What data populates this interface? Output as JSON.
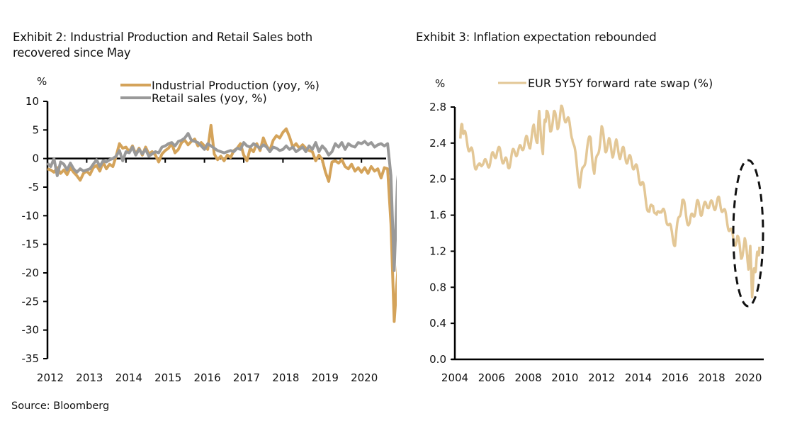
{
  "source": "Source: Bloomberg",
  "chart_data": [
    {
      "type": "line",
      "title": "Exhibit 2: Industrial Production and Retail Sales both recovered since May",
      "ylabel": "%",
      "xlabel": "",
      "ylim": [
        -35,
        10
      ],
      "yticks": [
        "10",
        "5",
        "0",
        "-5",
        "-10",
        "-15",
        "-20",
        "-25",
        "-30",
        "-35"
      ],
      "yticks_values": [
        10,
        5,
        0,
        -5,
        -10,
        -15,
        -20,
        -25,
        -30,
        -35
      ],
      "xticks": [
        "2012",
        "2013",
        "2014",
        "2015",
        "2016",
        "2017",
        "2018",
        "2019",
        "2020"
      ],
      "xlim": [
        2012.0,
        2020.55
      ],
      "legend_position": "top",
      "grid": false,
      "x_start": 2012.0,
      "x_step_months": 1,
      "series": [
        {
          "name": "Industrial Production (yoy, %)",
          "color": "#d4a35a",
          "values": [
            -1.8,
            -2.0,
            -2.4,
            -1.6,
            -2.6,
            -2.0,
            -2.8,
            -1.6,
            -2.4,
            -3.0,
            -3.8,
            -2.6,
            -2.2,
            -2.8,
            -1.6,
            -1.2,
            -2.2,
            -0.6,
            -1.8,
            -1.0,
            -1.4,
            0.4,
            2.6,
            1.8,
            2.0,
            1.2,
            2.2,
            0.8,
            1.8,
            0.6,
            2.0,
            0.8,
            1.2,
            0.6,
            -0.6,
            0.8,
            1.4,
            1.8,
            2.6,
            1.0,
            1.6,
            2.8,
            3.2,
            2.4,
            3.0,
            3.4,
            2.2,
            2.8,
            2.2,
            1.6,
            5.8,
            0.8,
            -0.2,
            0.4,
            -0.4,
            0.6,
            0.2,
            1.4,
            1.8,
            2.6,
            0.6,
            -0.4,
            1.8,
            1.2,
            2.6,
            1.4,
            3.6,
            2.2,
            1.4,
            3.2,
            4.0,
            3.6,
            4.6,
            5.2,
            3.8,
            2.0,
            2.6,
            1.8,
            2.4,
            1.8,
            1.4,
            1.2,
            -0.4,
            0.6,
            -0.2,
            -2.4,
            -4.0,
            -0.6,
            -0.4,
            -0.8,
            -0.2,
            -1.4,
            -1.8,
            -1.0,
            -2.2,
            -1.6,
            -2.4,
            -1.6,
            -2.6,
            -1.4,
            -2.2,
            -1.8,
            -3.4,
            -1.6,
            -1.8,
            -11.4,
            -28.5,
            -20.4,
            -12.2
          ]
        },
        {
          "name": "Retail sales (yoy, %)",
          "color": "#999999",
          "values": [
            -0.8,
            -1.4,
            0.0,
            -3.0,
            -0.6,
            -1.0,
            -2.0,
            -0.8,
            -1.8,
            -2.4,
            -1.8,
            -2.2,
            -2.0,
            -1.8,
            -1.0,
            -0.2,
            -1.4,
            -0.4,
            -0.6,
            -0.2,
            0.0,
            0.4,
            1.4,
            -0.4,
            1.2,
            1.0,
            2.0,
            0.6,
            1.6,
            0.8,
            1.6,
            0.4,
            0.8,
            1.2,
            1.0,
            2.0,
            2.2,
            2.6,
            2.8,
            2.2,
            3.0,
            3.2,
            3.6,
            4.4,
            3.2,
            3.0,
            2.8,
            2.2,
            1.6,
            2.6,
            2.2,
            1.8,
            1.4,
            1.2,
            1.0,
            1.2,
            1.4,
            1.2,
            1.8,
            1.6,
            2.8,
            2.2,
            2.0,
            2.6,
            2.2,
            1.8,
            2.4,
            2.0,
            1.2,
            2.0,
            1.8,
            1.4,
            1.6,
            2.2,
            1.6,
            2.0,
            1.2,
            1.6,
            2.0,
            1.2,
            2.2,
            1.6,
            2.8,
            1.2,
            2.2,
            1.6,
            0.6,
            1.2,
            2.6,
            2.0,
            2.8,
            1.6,
            2.6,
            2.2,
            2.0,
            2.8,
            2.6,
            3.0,
            2.4,
            2.8,
            2.0,
            2.4,
            2.6,
            2.2,
            2.6,
            -3.0,
            -19.6,
            -4.0,
            1.3
          ]
        }
      ]
    },
    {
      "type": "line",
      "title": "Exhibit 3: Inflation expectation rebounded",
      "ylabel": "%",
      "xlabel": "",
      "ylim": [
        0.0,
        2.8
      ],
      "yticks": [
        "2.8",
        "2.4",
        "2.0",
        "1.6",
        "1.2",
        "0.8",
        "0.4",
        "0.0"
      ],
      "yticks_values": [
        2.8,
        2.4,
        2.0,
        1.6,
        1.2,
        0.8,
        0.4,
        0.0
      ],
      "xticks": [
        "2004",
        "2006",
        "2008",
        "2010",
        "2012",
        "2014",
        "2016",
        "2018",
        "2020"
      ],
      "xlim": [
        2003.9,
        2020.9
      ],
      "legend_position": "top",
      "grid": false,
      "annotation": "dashed ellipse highlighting 2020 drop and rebound",
      "series": [
        {
          "name": "EUR 5Y5Y forward rate swap (%)",
          "color": "#e3c796",
          "x": [
            2004.3,
            2004.4,
            2004.5,
            2004.7,
            2004.9,
            2005.1,
            2005.3,
            2005.5,
            2005.7,
            2005.9,
            2006.1,
            2006.3,
            2006.5,
            2006.7,
            2006.9,
            2007.1,
            2007.3,
            2007.5,
            2007.7,
            2007.9,
            2008.1,
            2008.3,
            2008.5,
            2008.6,
            2008.8,
            2008.9,
            2009.0,
            2009.2,
            2009.4,
            2009.6,
            2009.8,
            2010.0,
            2010.2,
            2010.4,
            2010.6,
            2010.8,
            2011.0,
            2011.2,
            2011.4,
            2011.6,
            2011.8,
            2012.0,
            2012.2,
            2012.4,
            2012.6,
            2012.8,
            2013.0,
            2013.2,
            2013.4,
            2013.6,
            2013.8,
            2014.0,
            2014.2,
            2014.4,
            2014.6,
            2014.8,
            2015.0,
            2015.2,
            2015.4,
            2015.6,
            2015.8,
            2016.0,
            2016.2,
            2016.4,
            2016.6,
            2016.8,
            2017.0,
            2017.2,
            2017.4,
            2017.6,
            2017.8,
            2018.0,
            2018.2,
            2018.4,
            2018.6,
            2018.8,
            2019.0,
            2019.2,
            2019.4,
            2019.6,
            2019.8,
            2020.0,
            2020.1,
            2020.2,
            2020.3,
            2020.4,
            2020.5,
            2020.6
          ],
          "values": [
            2.45,
            2.62,
            2.5,
            2.4,
            2.3,
            2.18,
            2.1,
            2.22,
            2.15,
            2.2,
            2.25,
            2.32,
            2.28,
            2.2,
            2.15,
            2.25,
            2.32,
            2.3,
            2.38,
            2.42,
            2.4,
            2.55,
            2.45,
            2.72,
            2.3,
            2.65,
            2.75,
            2.55,
            2.72,
            2.6,
            2.76,
            2.7,
            2.62,
            2.5,
            2.2,
            1.95,
            2.1,
            2.35,
            2.45,
            2.05,
            2.3,
            2.55,
            2.35,
            2.4,
            2.3,
            2.38,
            2.28,
            2.3,
            2.22,
            2.2,
            2.15,
            2.05,
            1.95,
            1.8,
            1.6,
            1.75,
            1.55,
            1.7,
            1.6,
            1.55,
            1.4,
            1.3,
            1.55,
            1.78,
            1.6,
            1.5,
            1.62,
            1.72,
            1.65,
            1.68,
            1.74,
            1.7,
            1.72,
            1.75,
            1.68,
            1.55,
            1.45,
            1.3,
            1.35,
            1.15,
            1.3,
            1.05,
            1.2,
            0.75,
            0.95,
            1.05,
            1.15,
            1.25
          ]
        }
      ]
    }
  ]
}
